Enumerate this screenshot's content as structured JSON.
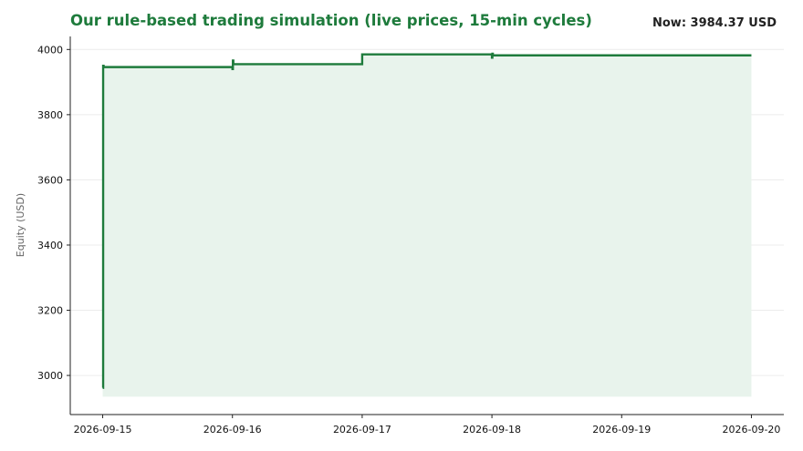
{
  "header": {
    "title": "Our rule-based trading simulation (live prices, 15-min cycles)",
    "now_label": "Now: 3984.37 USD"
  },
  "colors": {
    "line": "#1e7b3c",
    "fill": "#e8f3ec",
    "title": "#1e7b3c",
    "grid": "#ececec",
    "axis": "#222222"
  },
  "chart_data": {
    "type": "line",
    "title": "Our rule-based trading simulation (live prices, 15-min cycles)",
    "xlabel": "",
    "ylabel": "Equity (USD)",
    "x_tick_labels": [
      "2026-09-15",
      "2026-09-16",
      "2026-09-17",
      "2026-09-18",
      "2026-09-19",
      "2026-09-20"
    ],
    "y_ticks": [
      3000,
      3200,
      3400,
      3600,
      3800,
      4000
    ],
    "xlim": [
      "2026-09-14 18:00",
      "2026-09-20 06:00"
    ],
    "ylim": [
      2880,
      4040
    ],
    "grid": "horizontal",
    "series": [
      {
        "step": "post",
        "fill_baseline": 2935,
        "points": [
          {
            "x": "2026-09-15 00:00",
            "y": 2962
          },
          {
            "x": "2026-09-15 00:05",
            "y": 3950
          },
          {
            "x": "2026-09-15 00:10",
            "y": 3946
          },
          {
            "x": "2026-09-16 00:00",
            "y": 3940
          },
          {
            "x": "2026-09-16 00:05",
            "y": 3966
          },
          {
            "x": "2026-09-16 00:10",
            "y": 3955
          },
          {
            "x": "2026-09-17 00:00",
            "y": 3985
          },
          {
            "x": "2026-09-18 00:00",
            "y": 3975
          },
          {
            "x": "2026-09-18 00:05",
            "y": 3987
          },
          {
            "x": "2026-09-18 00:10",
            "y": 3982
          },
          {
            "x": "2026-09-20 00:00",
            "y": 3982
          }
        ]
      }
    ]
  }
}
